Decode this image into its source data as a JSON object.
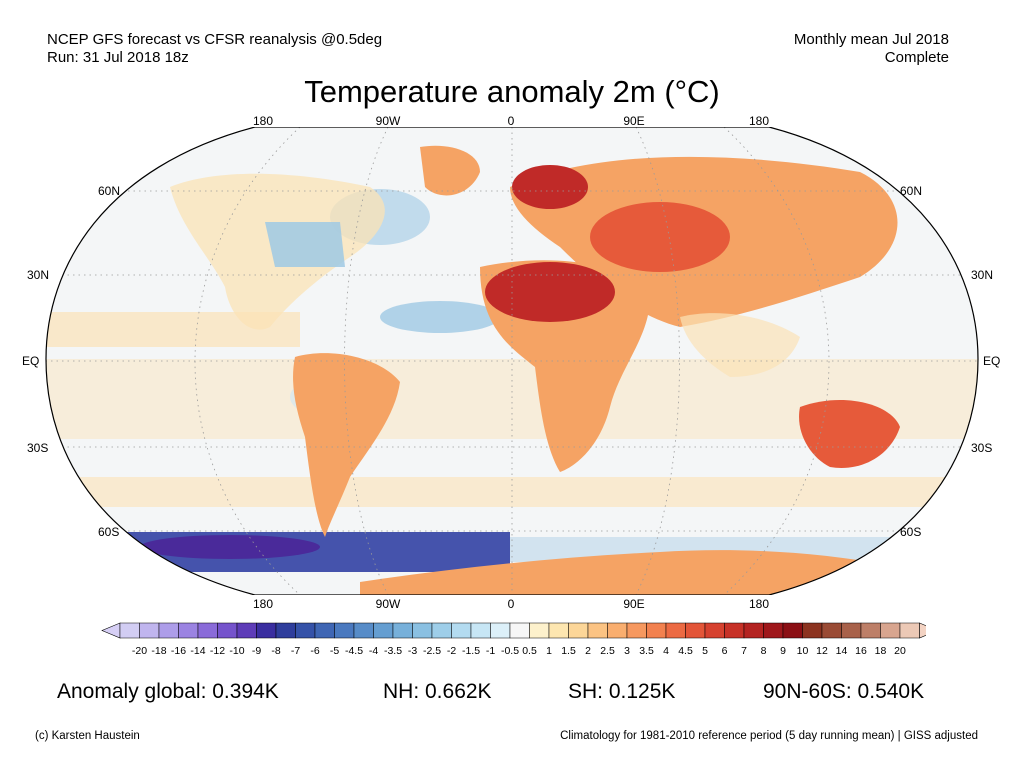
{
  "header": {
    "left_line1": "NCEP GFS forecast vs CFSR reanalysis @0.5deg",
    "left_line2": "Run: 31 Jul 2018 18z",
    "right_line1": "Monthly mean Jul 2018",
    "right_line2": "Complete"
  },
  "title": "Temperature anomaly 2m (°C)",
  "map": {
    "projection": "Robinson",
    "longitude_labels": [
      "180",
      "90W",
      "0",
      "90E",
      "180"
    ],
    "latitude_labels": [
      "60N",
      "30N",
      "EQ",
      "30S",
      "60S"
    ],
    "latitude_labels_right": [
      "60N",
      "30N",
      "EQ",
      "30S",
      "60S"
    ],
    "colors": {
      "ocean_neutral": "#f4f6f7",
      "warm_light": "#fbe3b6",
      "warm": "#f5a364",
      "hot": "#e65a3a",
      "very_hot": "#c02a28",
      "cool_light": "#cfe6f3",
      "cool": "#9fc9e4",
      "cold": "#3b4aa8",
      "very_cold": "#4a2a9a"
    }
  },
  "colorbar": {
    "labels": [
      "-20",
      "-18",
      "-16",
      "-14",
      "-12",
      "-10",
      "-9",
      "-8",
      "-7",
      "-6",
      "-5",
      "-4.5",
      "-4",
      "-3.5",
      "-3",
      "-2.5",
      "-2",
      "-1.5",
      "-1",
      "-0.5",
      "0.5",
      "1",
      "1.5",
      "2",
      "2.5",
      "3",
      "3.5",
      "4",
      "4.5",
      "5",
      "6",
      "7",
      "8",
      "9",
      "10",
      "12",
      "14",
      "16",
      "18",
      "20"
    ],
    "colors": [
      "#d2cdf3",
      "#c0b5ee",
      "#ad9de9",
      "#9b83e2",
      "#8a6bd9",
      "#7553cc",
      "#5e3cb8",
      "#3a2ea0",
      "#2f3e9c",
      "#3552a8",
      "#3f66b4",
      "#4a79bf",
      "#578cc8",
      "#659ed1",
      "#77b0da",
      "#8ac0e2",
      "#9ecee9",
      "#b3dbf0",
      "#c7e6f5",
      "#dcf0f9",
      "#f7f7f7",
      "#fdf1cc",
      "#fde6b0",
      "#fcd698",
      "#fbc383",
      "#f9ae6f",
      "#f6985f",
      "#f2814f",
      "#ec6a43",
      "#e35538",
      "#d6412f",
      "#c73127",
      "#b42321",
      "#9f171b",
      "#8b0f14",
      "#8c3320",
      "#9a4b35",
      "#a8614a",
      "#bd7f68",
      "#d8a58f",
      "#ecc9b6"
    ],
    "left_arrow_color": "#d6cff5",
    "right_arrow_color": "#f3d3c3"
  },
  "stats": {
    "global": "Anomaly global: 0.394K",
    "nh": "NH: 0.662K",
    "sh": "SH: 0.125K",
    "arctic": "90N-60S: 0.540K"
  },
  "footer": {
    "credit": "(c) Karsten Haustein",
    "note": "Climatology for 1981-2010 reference period (5 day running mean) | GISS adjusted"
  }
}
